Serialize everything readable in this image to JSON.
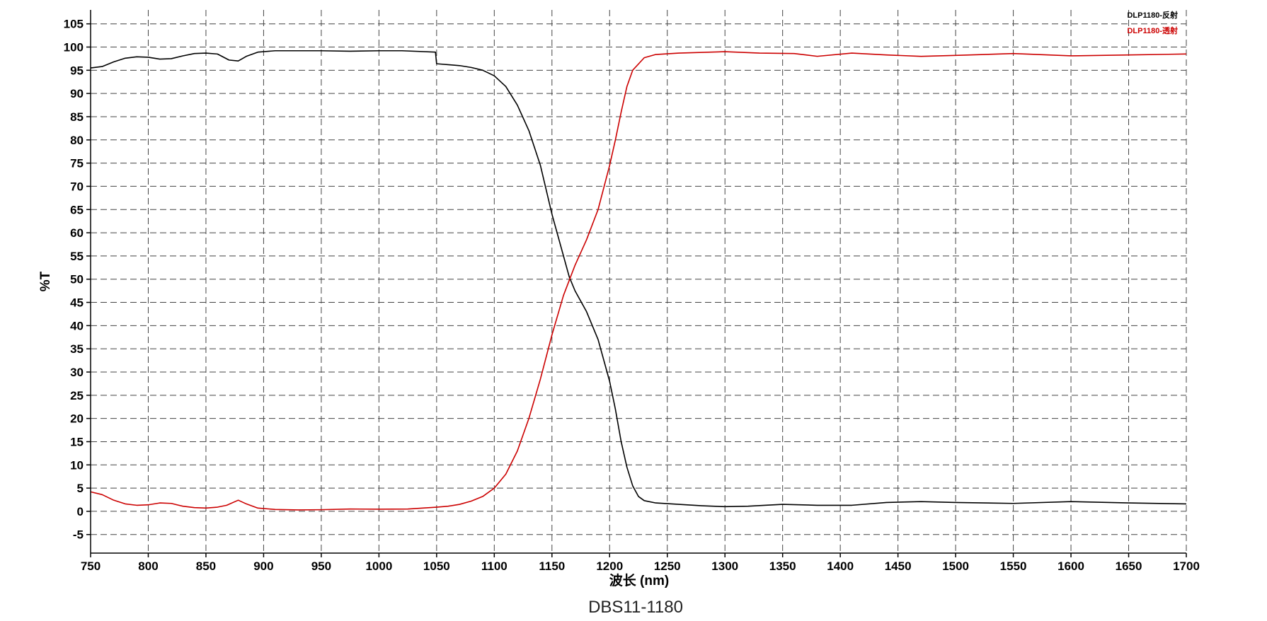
{
  "chart_data": {
    "type": "line",
    "title": "",
    "caption": "DBS11-1180",
    "xlabel": "波长 (nm)",
    "ylabel": "%T",
    "xlim": [
      750,
      1700
    ],
    "ylim": [
      -9,
      108
    ],
    "x_ticks": [
      750,
      800,
      850,
      900,
      950,
      1000,
      1050,
      1100,
      1150,
      1200,
      1250,
      1300,
      1350,
      1400,
      1450,
      1500,
      1550,
      1600,
      1650,
      1700
    ],
    "y_ticks": [
      -5,
      0,
      5,
      10,
      15,
      20,
      25,
      30,
      35,
      40,
      45,
      50,
      55,
      60,
      65,
      70,
      75,
      80,
      85,
      90,
      95,
      100,
      105
    ],
    "grid": true,
    "legend_position": "top-right",
    "series": [
      {
        "name": "DLP1180-反射",
        "color": "#000000",
        "points": [
          [
            750,
            95.5
          ],
          [
            760,
            95.8
          ],
          [
            770,
            96.8
          ],
          [
            780,
            97.6
          ],
          [
            790,
            97.9
          ],
          [
            800,
            97.8
          ],
          [
            810,
            97.4
          ],
          [
            820,
            97.5
          ],
          [
            830,
            98.1
          ],
          [
            840,
            98.6
          ],
          [
            850,
            98.7
          ],
          [
            860,
            98.5
          ],
          [
            870,
            97.2
          ],
          [
            878,
            97.0
          ],
          [
            885,
            98.0
          ],
          [
            895,
            98.9
          ],
          [
            910,
            99.2
          ],
          [
            950,
            99.2
          ],
          [
            975,
            99.1
          ],
          [
            1000,
            99.2
          ],
          [
            1020,
            99.2
          ],
          [
            1049,
            98.9
          ],
          [
            1050,
            96.4
          ],
          [
            1060,
            96.2
          ],
          [
            1070,
            96.0
          ],
          [
            1080,
            95.6
          ],
          [
            1090,
            95.0
          ],
          [
            1100,
            93.8
          ],
          [
            1110,
            91.5
          ],
          [
            1120,
            87.5
          ],
          [
            1130,
            82.0
          ],
          [
            1140,
            74.5
          ],
          [
            1150,
            64.0
          ],
          [
            1160,
            55.0
          ],
          [
            1165,
            50.5
          ],
          [
            1170,
            47.5
          ],
          [
            1180,
            43.0
          ],
          [
            1190,
            37.0
          ],
          [
            1200,
            28.0
          ],
          [
            1205,
            22.0
          ],
          [
            1210,
            15.0
          ],
          [
            1215,
            9.5
          ],
          [
            1220,
            5.5
          ],
          [
            1225,
            3.2
          ],
          [
            1230,
            2.3
          ],
          [
            1240,
            1.8
          ],
          [
            1260,
            1.5
          ],
          [
            1280,
            1.2
          ],
          [
            1300,
            1.0
          ],
          [
            1320,
            1.1
          ],
          [
            1350,
            1.5
          ],
          [
            1380,
            1.3
          ],
          [
            1410,
            1.3
          ],
          [
            1440,
            1.9
          ],
          [
            1470,
            2.1
          ],
          [
            1500,
            1.9
          ],
          [
            1550,
            1.7
          ],
          [
            1600,
            2.1
          ],
          [
            1650,
            1.8
          ],
          [
            1700,
            1.6
          ]
        ]
      },
      {
        "name": "DLP1180-透射",
        "color": "#cc0000",
        "points": [
          [
            750,
            4.2
          ],
          [
            760,
            3.6
          ],
          [
            770,
            2.4
          ],
          [
            780,
            1.6
          ],
          [
            790,
            1.3
          ],
          [
            800,
            1.4
          ],
          [
            810,
            1.8
          ],
          [
            820,
            1.7
          ],
          [
            830,
            1.1
          ],
          [
            840,
            0.8
          ],
          [
            850,
            0.7
          ],
          [
            860,
            0.9
          ],
          [
            868,
            1.3
          ],
          [
            878,
            2.4
          ],
          [
            885,
            1.6
          ],
          [
            895,
            0.7
          ],
          [
            910,
            0.4
          ],
          [
            930,
            0.3
          ],
          [
            950,
            0.35
          ],
          [
            975,
            0.5
          ],
          [
            1000,
            0.45
          ],
          [
            1025,
            0.5
          ],
          [
            1050,
            0.9
          ],
          [
            1060,
            1.1
          ],
          [
            1070,
            1.5
          ],
          [
            1080,
            2.2
          ],
          [
            1090,
            3.2
          ],
          [
            1100,
            5.0
          ],
          [
            1110,
            8.0
          ],
          [
            1120,
            13.0
          ],
          [
            1130,
            20.0
          ],
          [
            1140,
            28.5
          ],
          [
            1150,
            38.0
          ],
          [
            1160,
            46.5
          ],
          [
            1170,
            53.0
          ],
          [
            1180,
            58.5
          ],
          [
            1190,
            65.0
          ],
          [
            1200,
            74.5
          ],
          [
            1205,
            80.0
          ],
          [
            1210,
            86.0
          ],
          [
            1215,
            91.5
          ],
          [
            1220,
            95.0
          ],
          [
            1230,
            97.7
          ],
          [
            1240,
            98.4
          ],
          [
            1260,
            98.7
          ],
          [
            1300,
            99.0
          ],
          [
            1330,
            98.7
          ],
          [
            1360,
            98.6
          ],
          [
            1380,
            98.0
          ],
          [
            1410,
            98.7
          ],
          [
            1440,
            98.3
          ],
          [
            1470,
            98.0
          ],
          [
            1500,
            98.2
          ],
          [
            1550,
            98.6
          ],
          [
            1600,
            98.1
          ],
          [
            1650,
            98.3
          ],
          [
            1700,
            98.5
          ]
        ]
      }
    ]
  }
}
